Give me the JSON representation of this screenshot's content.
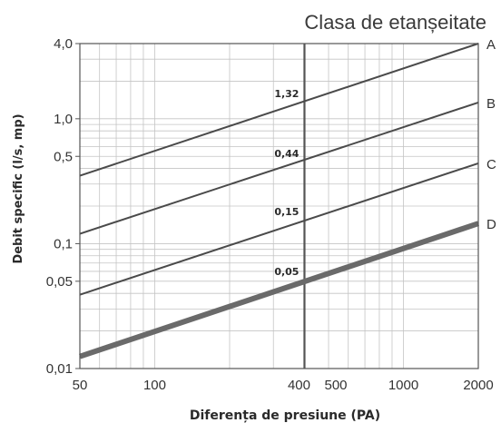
{
  "chart_data": {
    "type": "line",
    "title": "Clasa de etanșeitate",
    "xlabel": "Diferența de presiune (PA)",
    "ylabel": "Debit specific (l/s, mp)",
    "xscale": "log",
    "yscale": "log",
    "xlim": [
      50,
      2000
    ],
    "ylim": [
      0.01,
      4.0
    ],
    "x_ticks": [
      {
        "value": 50,
        "label": "50"
      },
      {
        "value": 100,
        "label": "100"
      },
      {
        "value": 400,
        "label": "400"
      },
      {
        "value": 500,
        "label": "500"
      },
      {
        "value": 1000,
        "label": "1000"
      },
      {
        "value": 2000,
        "label": "2000"
      }
    ],
    "y_ticks": [
      {
        "value": 0.01,
        "label": "0,01"
      },
      {
        "value": 0.05,
        "label": "0,05"
      },
      {
        "value": 0.1,
        "label": "0,1"
      },
      {
        "value": 0.5,
        "label": "0,5"
      },
      {
        "value": 1.0,
        "label": "1,0"
      },
      {
        "value": 4.0,
        "label": "4,0"
      }
    ],
    "grid": true,
    "reference_line_x": 400,
    "series": [
      {
        "name": "A",
        "x": [
          50,
          2000
        ],
        "values": [
          0.35,
          4.0
        ],
        "width": 2
      },
      {
        "name": "B",
        "x": [
          50,
          2000
        ],
        "values": [
          0.12,
          1.35
        ],
        "width": 2
      },
      {
        "name": "C",
        "x": [
          50,
          2000
        ],
        "values": [
          0.039,
          0.44
        ],
        "width": 2
      },
      {
        "name": "D",
        "x": [
          50,
          2000
        ],
        "values": [
          0.0125,
          0.145
        ],
        "width": 6
      }
    ],
    "annotations": [
      {
        "text": "1,32",
        "x": 400,
        "y": 1.32
      },
      {
        "text": "0,44",
        "x": 400,
        "y": 0.44
      },
      {
        "text": "0,15",
        "x": 400,
        "y": 0.15
      },
      {
        "text": "0,05",
        "x": 400,
        "y": 0.05
      }
    ]
  }
}
